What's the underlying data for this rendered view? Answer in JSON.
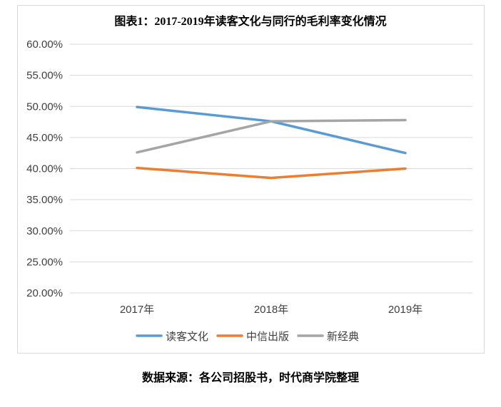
{
  "chart_data": {
    "type": "line",
    "title": "图表1：2017-2019年读客文化与同行的毛利率变化情况",
    "categories": [
      "2017年",
      "2018年",
      "2019年"
    ],
    "ylim": [
      20,
      60
    ],
    "yticks": [
      "20.00%",
      "25.00%",
      "30.00%",
      "35.00%",
      "40.00%",
      "45.00%",
      "50.00%",
      "55.00%",
      "60.00%"
    ],
    "grid": true,
    "legend_position": "bottom",
    "series": [
      {
        "name": "读客文化",
        "color": "#5b9bd5",
        "values": [
          49.9,
          47.6,
          42.5
        ]
      },
      {
        "name": "中信出版",
        "color": "#ed7d31",
        "values": [
          40.1,
          38.5,
          40.0
        ]
      },
      {
        "name": "新经典",
        "color": "#a5a5a5",
        "values": [
          42.6,
          47.6,
          47.8
        ]
      }
    ]
  },
  "source": "数据来源：各公司招股书，时代商学院整理"
}
